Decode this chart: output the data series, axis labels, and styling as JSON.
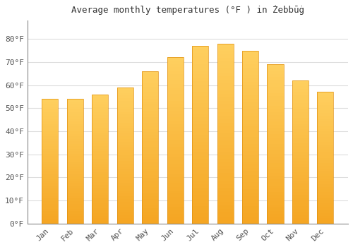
{
  "title": "Average monthly temperatures (°F ) in Żebbūġ",
  "months": [
    "Jan",
    "Feb",
    "Mar",
    "Apr",
    "May",
    "Jun",
    "Jul",
    "Aug",
    "Sep",
    "Oct",
    "Nov",
    "Dec"
  ],
  "values": [
    54,
    54,
    56,
    59,
    66,
    72,
    77,
    78,
    75,
    69,
    62,
    57
  ],
  "bar_color_bottom": "#F5A623",
  "bar_color_top": "#FFD060",
  "bar_edge_color": "#E09010",
  "background_color": "#FFFFFF",
  "plot_bg_color": "#FFFFFF",
  "grid_color": "#DDDDDD",
  "text_color": "#555555",
  "ylim": [
    0,
    88
  ],
  "yticks": [
    0,
    10,
    20,
    30,
    40,
    50,
    60,
    70,
    80
  ],
  "title_fontsize": 9,
  "tick_fontsize": 8,
  "bar_width": 0.65
}
